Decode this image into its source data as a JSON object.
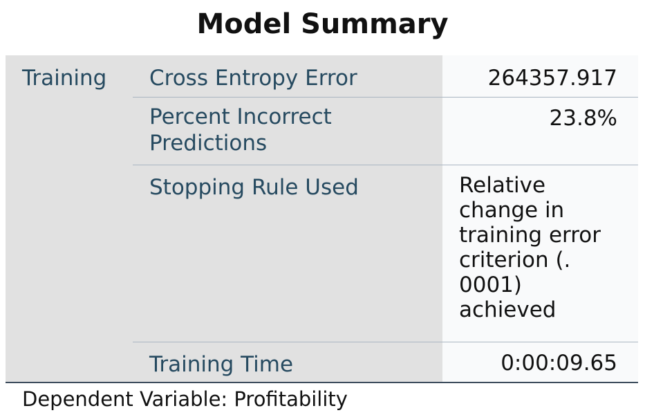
{
  "title": "Model Summary",
  "table": {
    "group_label": "Training",
    "rows": [
      {
        "label": "Cross Entropy Error",
        "value": "264357.917"
      },
      {
        "label": "Percent Incorrect Predictions",
        "value": "23.8%"
      },
      {
        "label": "Stopping Rule Used",
        "value": "Relative change in training error criterion (. 0001) achieved"
      },
      {
        "label": "Training Time",
        "value": "0:00:09.65"
      }
    ]
  },
  "footnote": "Dependent Variable: Profitability"
}
